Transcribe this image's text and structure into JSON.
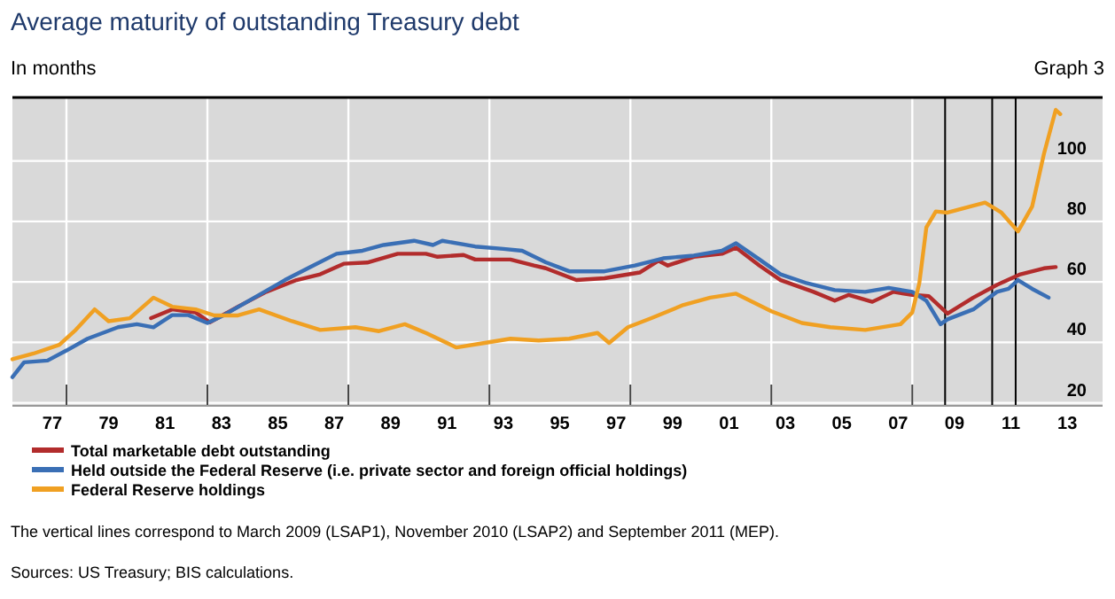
{
  "chart_data": {
    "type": "line",
    "title": "Average maturity of outstanding Treasury debt",
    "subtitle": "In months",
    "annotations": [
      "Graph 3",
      "The vertical lines correspond to March 2009 (LSAP1), November 2010 (LSAP2) and September 2011 (MEP).",
      "Sources: US Treasury; BIS calculations."
    ],
    "xlim": [
      "1976-02",
      "2014-10"
    ],
    "ylim": [
      19,
      121
    ],
    "xticks": [
      {
        "value": "1977-07",
        "label": "77"
      },
      {
        "value": "1979-07",
        "label": "79"
      },
      {
        "value": "1981-07",
        "label": "81"
      },
      {
        "value": "1983-07",
        "label": "83"
      },
      {
        "value": "1985-07",
        "label": "85"
      },
      {
        "value": "1987-07",
        "label": "87"
      },
      {
        "value": "1989-07",
        "label": "89"
      },
      {
        "value": "1991-07",
        "label": "91"
      },
      {
        "value": "1993-07",
        "label": "93"
      },
      {
        "value": "1995-07",
        "label": "95"
      },
      {
        "value": "1997-07",
        "label": "97"
      },
      {
        "value": "1999-07",
        "label": "99"
      },
      {
        "value": "2001-07",
        "label": "01"
      },
      {
        "value": "2003-07",
        "label": "03"
      },
      {
        "value": "2005-07",
        "label": "05"
      },
      {
        "value": "2007-07",
        "label": "07"
      },
      {
        "value": "2009-07",
        "label": "09"
      },
      {
        "value": "2011-07",
        "label": "11"
      },
      {
        "value": "2013-07",
        "label": "13"
      },
      {
        "value": "1978-01",
        "label": null
      },
      {
        "value": "1983-01",
        "label": null
      },
      {
        "value": "1988-01",
        "label": null
      },
      {
        "value": "1993-01",
        "label": null
      },
      {
        "value": "1998-01",
        "label": null
      },
      {
        "value": "2003-01",
        "label": null
      },
      {
        "value": "2008-01",
        "label": null
      }
    ],
    "yticks": [
      20,
      40,
      60,
      80,
      100
    ],
    "grid": true,
    "legend": "bottom",
    "marker": "none",
    "line_style": "solid",
    "ref_lines": [
      {
        "axis": "x",
        "value": "2009-03",
        "color": "#000000"
      },
      {
        "axis": "x",
        "value": "2010-11",
        "color": "#000000"
      },
      {
        "axis": "x",
        "value": "2011-09",
        "color": "#000000"
      }
    ],
    "series": [
      {
        "name": "Total marketable debt outstanding",
        "color": "#b22c2c",
        "x": [
          "1981-01",
          "1981-10",
          "1982-08",
          "1983-02",
          "1984-02",
          "1985-02",
          "1986-03",
          "1987-01",
          "1987-11",
          "1988-09",
          "1989-10",
          "1990-10",
          "1991-03",
          "1992-02",
          "1992-07",
          "1993-10",
          "1994-08",
          "1995-01",
          "1996-02",
          "1997-02",
          "1998-05",
          "1999-01",
          "1999-05",
          "2000-04",
          "2001-04",
          "2001-10",
          "2002-08",
          "2003-05",
          "2004-07",
          "2005-04",
          "2005-10",
          "2006-08",
          "2007-05",
          "2008-01",
          "2008-08",
          "2009-04",
          "2010-03",
          "2011-01",
          "2011-11",
          "2012-09",
          "2013-02"
        ],
        "values": [
          48,
          50.9,
          49.9,
          46.6,
          51.8,
          56.7,
          60.6,
          62.5,
          66,
          66.4,
          69.3,
          69.3,
          68.3,
          68.9,
          67.4,
          67.4,
          65.4,
          64.5,
          60.6,
          61.2,
          63.1,
          67,
          65.4,
          68.3,
          69.3,
          71.3,
          65.4,
          60.6,
          56.7,
          53.8,
          55.7,
          53.4,
          56.7,
          55.7,
          55.3,
          49.5,
          54.8,
          59,
          62.5,
          64.5,
          64.9
        ]
      },
      {
        "name": "Held outside the Federal Reserve (i.e. private sector and foreign official holdings)",
        "color": "#3a6fb5",
        "x": [
          "1976-02",
          "1976-07",
          "1977-05",
          "1978-01",
          "1978-10",
          "1979-11",
          "1980-07",
          "1981-02",
          "1981-10",
          "1982-05",
          "1983-01",
          "1983-08",
          "1984-09",
          "1985-10",
          "1986-10",
          "1987-08",
          "1988-07",
          "1989-04",
          "1990-05",
          "1991-01",
          "1991-05",
          "1992-07",
          "1993-07",
          "1994-03",
          "1995-01",
          "1995-11",
          "1997-02",
          "1998-03",
          "1999-03",
          "2000-04",
          "2001-04",
          "2001-10",
          "2002-08",
          "2003-05",
          "2004-04",
          "2005-04",
          "2006-05",
          "2007-03",
          "2008-01",
          "2008-07",
          "2009-01",
          "2009-04",
          "2010-03",
          "2011-01",
          "2011-06",
          "2011-10",
          "2012-04",
          "2012-11"
        ],
        "values": [
          28.5,
          33.4,
          34,
          37.3,
          41.2,
          45,
          46,
          45,
          49,
          49,
          46.4,
          49,
          54.8,
          60.6,
          65.4,
          69.3,
          70.3,
          72.2,
          73.6,
          72.2,
          73.6,
          71.7,
          70.9,
          70.3,
          66.5,
          63.5,
          63.5,
          65.4,
          67.8,
          68.7,
          70.3,
          72.8,
          67.4,
          62.5,
          59.6,
          57.3,
          56.7,
          58,
          56.7,
          53.8,
          46,
          47.6,
          50.9,
          56.7,
          57.7,
          60.6,
          57.7,
          54.8
        ]
      },
      {
        "name": "Federal Reserve holdings",
        "color": "#f0a022",
        "x": [
          "1976-02",
          "1976-11",
          "1977-10",
          "1978-05",
          "1979-01",
          "1979-07",
          "1980-04",
          "1981-02",
          "1981-10",
          "1982-08",
          "1983-04",
          "1984-02",
          "1984-11",
          "1986-01",
          "1987-01",
          "1988-04",
          "1989-02",
          "1990-01",
          "1990-10",
          "1991-11",
          "1992-11",
          "1993-10",
          "1994-10",
          "1995-11",
          "1996-11",
          "1997-04",
          "1997-12",
          "1998-10",
          "1999-11",
          "2000-11",
          "2001-10",
          "2003-01",
          "2004-02",
          "2005-02",
          "2006-05",
          "2007-08",
          "2008-01",
          "2008-04",
          "2008-07",
          "2008-11",
          "2009-04",
          "2010-03",
          "2010-08",
          "2011-03",
          "2011-10",
          "2012-04",
          "2012-09",
          "2013-02",
          "2013-04"
        ],
        "values": [
          34.4,
          36.3,
          39.2,
          44.1,
          50.9,
          47,
          48,
          54.8,
          51.8,
          50.9,
          48.9,
          48.9,
          50.9,
          47,
          44.1,
          45,
          43.7,
          46,
          43.1,
          38.3,
          39.8,
          41.2,
          40.6,
          41.2,
          43.1,
          39.8,
          45,
          48,
          52.2,
          54.8,
          56.1,
          50.3,
          46.4,
          45,
          44.1,
          46,
          49.9,
          59.6,
          78,
          83.3,
          82.9,
          85.2,
          86.2,
          82.9,
          76.7,
          84.9,
          102.3,
          116.9,
          115.5
        ]
      }
    ]
  }
}
